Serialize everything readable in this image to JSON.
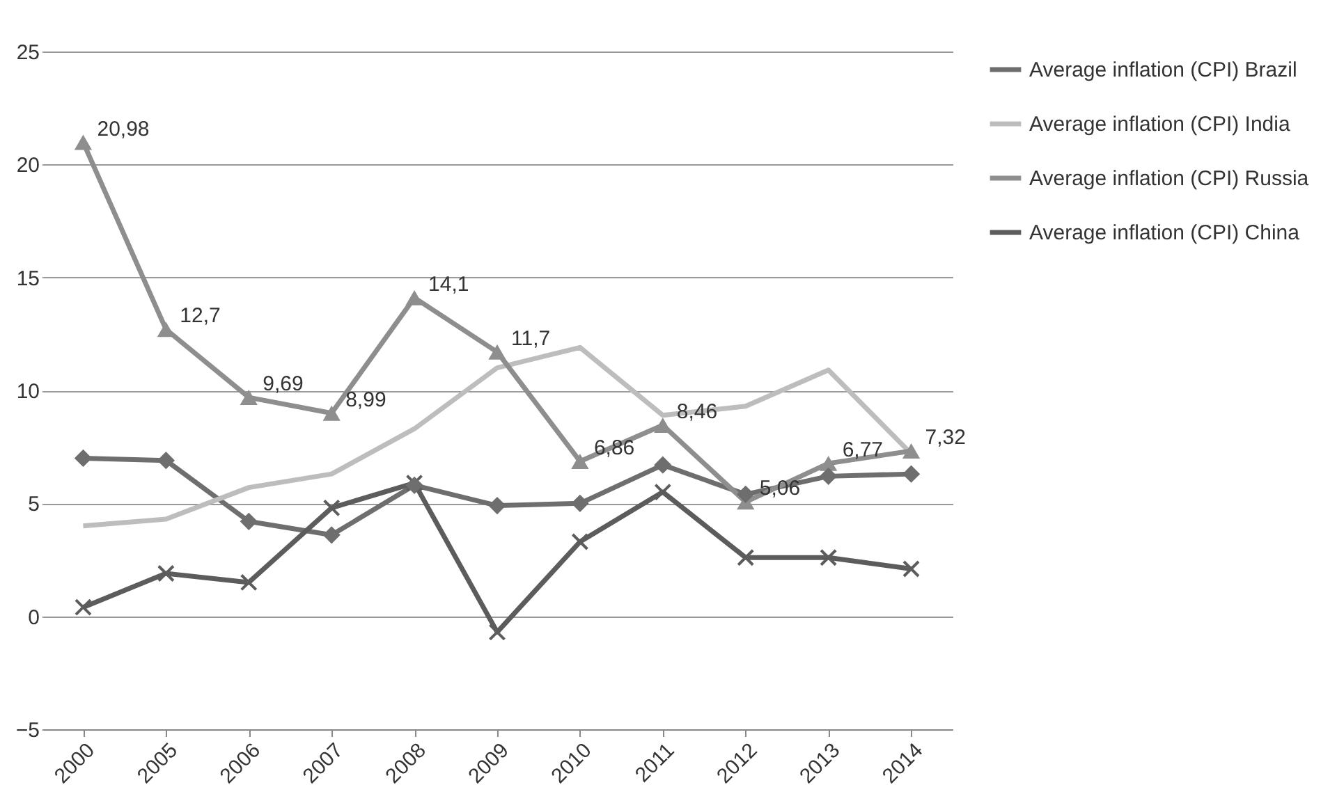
{
  "chart_data": {
    "type": "line",
    "categories": [
      "2000",
      "2005",
      "2006",
      "2007",
      "2008",
      "2009",
      "2010",
      "2011",
      "2012",
      "2013",
      "2014"
    ],
    "ylim": [
      -5,
      25
    ],
    "yticks": [
      -5,
      0,
      5,
      10,
      15,
      20,
      25
    ],
    "grid": "y",
    "legend": "right",
    "series": [
      {
        "name": "Average inflation (CPI) Brazil",
        "color": "#6e6e6e",
        "marker": "diamond",
        "values": [
          7.0,
          6.9,
          4.2,
          3.6,
          5.8,
          4.9,
          5.0,
          6.7,
          5.4,
          6.2,
          6.3
        ]
      },
      {
        "name": "Average inflation (CPI) India",
        "color": "#bdbdbd",
        "marker": "none",
        "values": [
          4.0,
          4.3,
          5.7,
          6.3,
          8.3,
          11.0,
          11.9,
          8.9,
          9.3,
          10.9,
          7.2
        ]
      },
      {
        "name": "Average inflation (CPI) Russia",
        "color": "#8e8e8e",
        "marker": "triangle",
        "values": [
          20.98,
          12.7,
          9.69,
          8.99,
          14.1,
          11.7,
          6.86,
          8.46,
          5.06,
          6.77,
          7.32
        ],
        "value_labels": [
          "20,98",
          "12,7",
          "9,69",
          "8,99",
          "14,1",
          "11,7",
          "6,86",
          "8,46",
          "5,06",
          "6,77",
          "7,32"
        ]
      },
      {
        "name": "Average inflation (CPI) China",
        "color": "#5c5c5c",
        "marker": "cross",
        "values": [
          0.4,
          1.9,
          1.5,
          4.8,
          5.9,
          -0.7,
          3.3,
          5.5,
          2.6,
          2.6,
          2.1
        ]
      }
    ]
  }
}
